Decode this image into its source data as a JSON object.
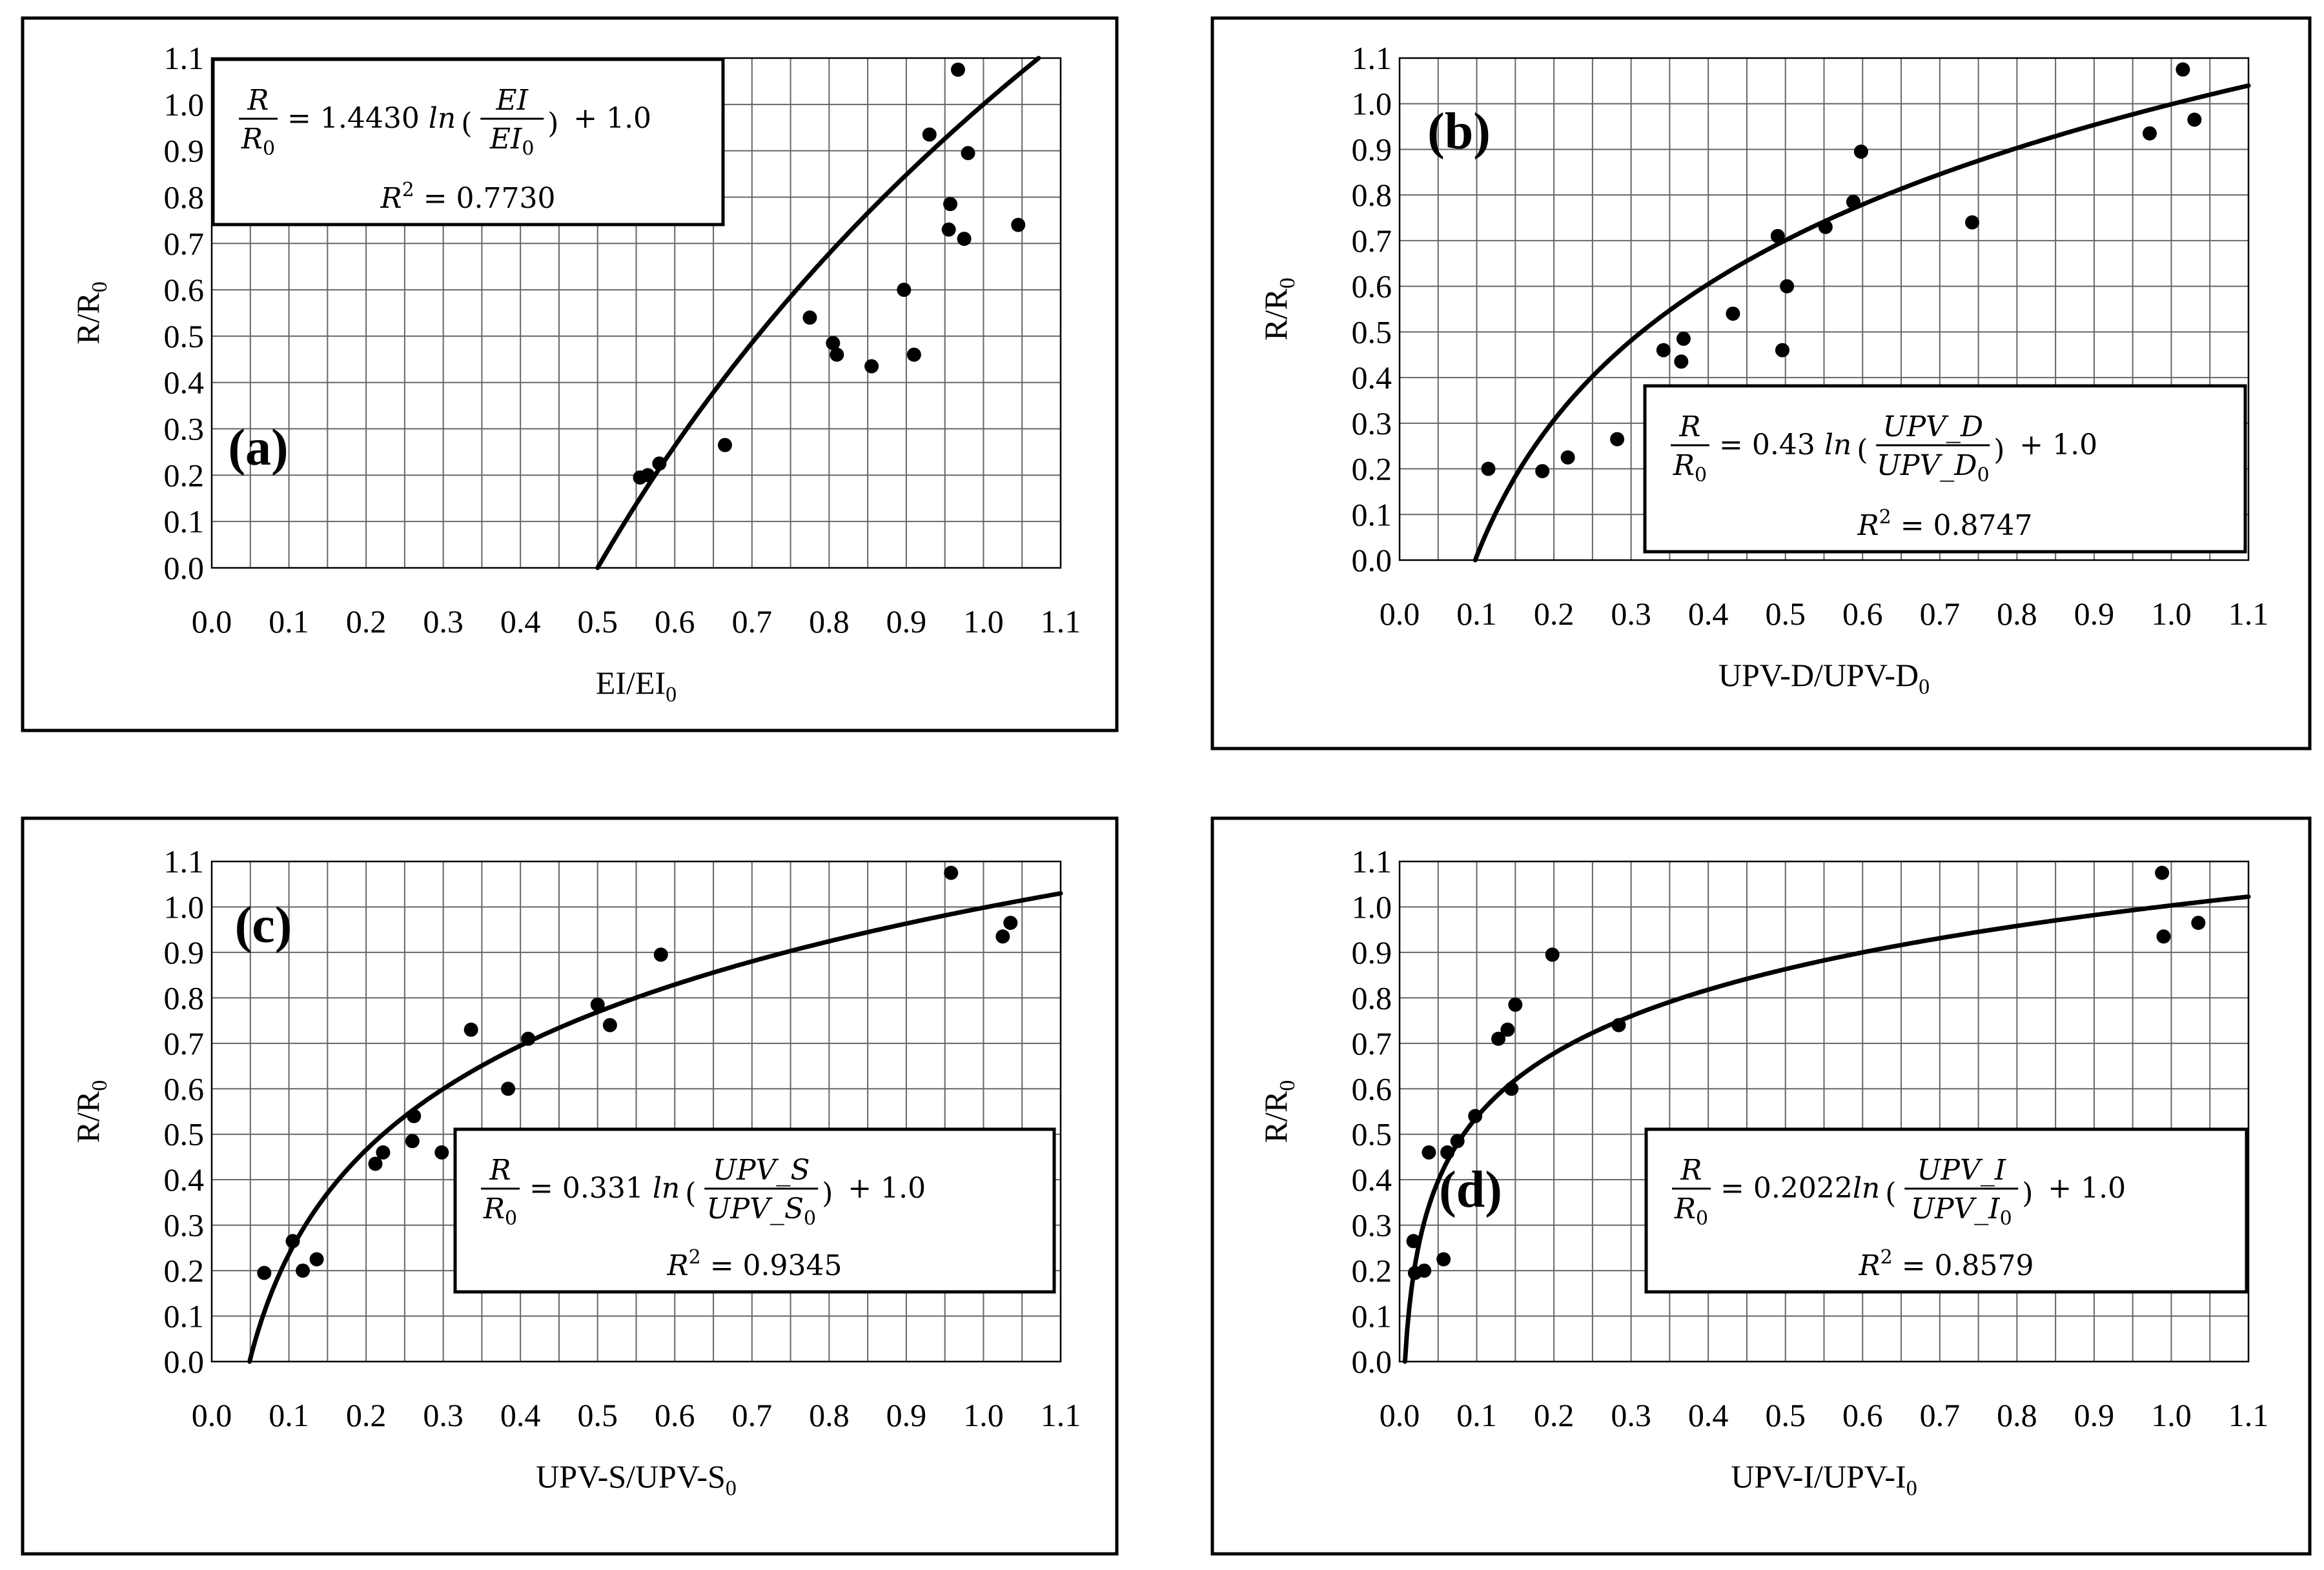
{
  "chart_data": [
    {
      "id": "a",
      "type": "scatter",
      "panel_label": "(a)",
      "xlabel": "EI/EI",
      "xlabel_sub": "0",
      "ylabel": "R/R",
      "ylabel_sub": "0",
      "xlim": [
        0.0,
        1.1
      ],
      "ylim": [
        0.0,
        1.1
      ],
      "x_ticks": [
        "0.0",
        "0.1",
        "0.2",
        "0.3",
        "0.4",
        "0.5",
        "0.6",
        "0.7",
        "0.8",
        "0.9",
        "1.0",
        "1.1"
      ],
      "y_ticks": [
        "0.0",
        "0.1",
        "0.2",
        "0.3",
        "0.4",
        "0.5",
        "0.6",
        "0.7",
        "0.8",
        "0.9",
        "1.0",
        "1.1"
      ],
      "grid": true,
      "fit": {
        "coef": 1.443,
        "x0": 0.5
      },
      "equation": {
        "num": "R",
        "den": "R",
        "den_sub": "0",
        "rhs_prefix": "= 1.4430 ",
        "ln": "ln",
        "arg_num": "EI",
        "arg_den": "EI",
        "arg_den_sub": "0",
        "rhs_suffix": "+ 1.0",
        "r2_label": "R",
        "r2_sup": "2",
        "r2_value": "= 0.7730"
      },
      "points": [
        {
          "x": 0.555,
          "y": 0.195
        },
        {
          "x": 0.565,
          "y": 0.2
        },
        {
          "x": 0.58,
          "y": 0.225
        },
        {
          "x": 0.665,
          "y": 0.265
        },
        {
          "x": 0.775,
          "y": 0.54
        },
        {
          "x": 0.805,
          "y": 0.485
        },
        {
          "x": 0.81,
          "y": 0.46
        },
        {
          "x": 0.855,
          "y": 0.435
        },
        {
          "x": 0.897,
          "y": 0.6
        },
        {
          "x": 0.91,
          "y": 0.46
        },
        {
          "x": 0.93,
          "y": 0.935
        },
        {
          "x": 0.955,
          "y": 0.73
        },
        {
          "x": 0.957,
          "y": 0.785
        },
        {
          "x": 0.967,
          "y": 1.075
        },
        {
          "x": 0.975,
          "y": 0.71
        },
        {
          "x": 0.98,
          "y": 0.895
        },
        {
          "x": 1.045,
          "y": 0.74
        }
      ]
    },
    {
      "id": "b",
      "type": "scatter",
      "panel_label": "(b)",
      "xlabel": "UPV-D/UPV-D",
      "xlabel_sub": "0",
      "ylabel": "R/R",
      "ylabel_sub": "0",
      "xlim": [
        0.0,
        1.1
      ],
      "ylim": [
        0.0,
        1.1
      ],
      "x_ticks": [
        "0.0",
        "0.1",
        "0.2",
        "0.3",
        "0.4",
        "0.5",
        "0.6",
        "0.7",
        "0.8",
        "0.9",
        "1.0",
        "1.1"
      ],
      "y_ticks": [
        "0.0",
        "0.1",
        "0.2",
        "0.3",
        "0.4",
        "0.5",
        "0.6",
        "0.7",
        "0.8",
        "0.9",
        "1.0",
        "1.1"
      ],
      "grid": true,
      "fit": {
        "coef": 0.43,
        "x0": 0.098
      },
      "equation": {
        "num": "R",
        "den": "R",
        "den_sub": "0",
        "rhs_prefix": "= 0.43 ",
        "ln": "ln",
        "arg_num": "UPV_D",
        "arg_den": "UPV_D",
        "arg_den_sub": "0",
        "rhs_suffix": "+ 1.0",
        "r2_label": "R",
        "r2_sup": "2",
        "r2_value": "= 0.8747"
      },
      "points": [
        {
          "x": 0.115,
          "y": 0.2
        },
        {
          "x": 0.185,
          "y": 0.195
        },
        {
          "x": 0.218,
          "y": 0.225
        },
        {
          "x": 0.282,
          "y": 0.265
        },
        {
          "x": 0.342,
          "y": 0.46
        },
        {
          "x": 0.365,
          "y": 0.435
        },
        {
          "x": 0.368,
          "y": 0.485
        },
        {
          "x": 0.432,
          "y": 0.54
        },
        {
          "x": 0.49,
          "y": 0.71
        },
        {
          "x": 0.496,
          "y": 0.46
        },
        {
          "x": 0.502,
          "y": 0.6
        },
        {
          "x": 0.552,
          "y": 0.73
        },
        {
          "x": 0.588,
          "y": 0.785
        },
        {
          "x": 0.598,
          "y": 0.895
        },
        {
          "x": 0.742,
          "y": 0.74
        },
        {
          "x": 0.972,
          "y": 0.935
        },
        {
          "x": 1.015,
          "y": 1.075
        },
        {
          "x": 1.03,
          "y": 0.965
        }
      ]
    },
    {
      "id": "c",
      "type": "scatter",
      "panel_label": "(c)",
      "xlabel": "UPV-S/UPV-S",
      "xlabel_sub": "0",
      "ylabel": "R/R",
      "ylabel_sub": "0",
      "xlim": [
        0.0,
        1.1
      ],
      "ylim": [
        0.0,
        1.1
      ],
      "x_ticks": [
        "0.0",
        "0.1",
        "0.2",
        "0.3",
        "0.4",
        "0.5",
        "0.6",
        "0.7",
        "0.8",
        "0.9",
        "1.0",
        "1.1"
      ],
      "y_ticks": [
        "0.0",
        "0.1",
        "0.2",
        "0.3",
        "0.4",
        "0.5",
        "0.6",
        "0.7",
        "0.8",
        "0.9",
        "1.0",
        "1.1"
      ],
      "grid": true,
      "fit": {
        "coef": 0.331,
        "x0": 0.049
      },
      "equation": {
        "num": "R",
        "den": "R",
        "den_sub": "0",
        "rhs_prefix": "= 0.331 ",
        "ln": "ln",
        "arg_num": "UPV_S",
        "arg_den": "UPV_S",
        "arg_den_sub": "0",
        "rhs_suffix": "+ 1.0",
        "r2_label": "R",
        "r2_sup": "2",
        "r2_value": "= 0.9345"
      },
      "points": [
        {
          "x": 0.068,
          "y": 0.195
        },
        {
          "x": 0.105,
          "y": 0.265
        },
        {
          "x": 0.118,
          "y": 0.2
        },
        {
          "x": 0.136,
          "y": 0.225
        },
        {
          "x": 0.212,
          "y": 0.435
        },
        {
          "x": 0.222,
          "y": 0.46
        },
        {
          "x": 0.26,
          "y": 0.485
        },
        {
          "x": 0.262,
          "y": 0.54
        },
        {
          "x": 0.298,
          "y": 0.46
        },
        {
          "x": 0.336,
          "y": 0.73
        },
        {
          "x": 0.384,
          "y": 0.6
        },
        {
          "x": 0.41,
          "y": 0.71
        },
        {
          "x": 0.5,
          "y": 0.785
        },
        {
          "x": 0.516,
          "y": 0.74
        },
        {
          "x": 0.582,
          "y": 0.895
        },
        {
          "x": 0.958,
          "y": 1.075
        },
        {
          "x": 1.025,
          "y": 0.935
        },
        {
          "x": 1.035,
          "y": 0.965
        }
      ]
    },
    {
      "id": "d",
      "type": "scatter",
      "panel_label": "(d)",
      "xlabel": "UPV-I/UPV-I",
      "xlabel_sub": "0",
      "ylabel": "R/R",
      "ylabel_sub": "0",
      "xlim": [
        0.0,
        1.1
      ],
      "ylim": [
        0.0,
        1.1
      ],
      "x_ticks": [
        "0.0",
        "0.1",
        "0.2",
        "0.3",
        "0.4",
        "0.5",
        "0.6",
        "0.7",
        "0.8",
        "0.9",
        "1.0",
        "1.1"
      ],
      "y_ticks": [
        "0.0",
        "0.1",
        "0.2",
        "0.3",
        "0.4",
        "0.5",
        "0.6",
        "0.7",
        "0.8",
        "0.9",
        "1.0",
        "1.1"
      ],
      "grid": true,
      "fit": {
        "coef": 0.2022,
        "x0": 0.007
      },
      "equation": {
        "num": "R",
        "den": "R",
        "den_sub": "0",
        "rhs_prefix": "= 0.2022",
        "ln": "ln",
        "arg_num": "UPV_I",
        "arg_den": "UPV_I",
        "arg_den_sub": "0",
        "rhs_suffix": "+ 1.0",
        "r2_label": "R",
        "r2_sup": "2",
        "r2_value": "= 0.8579"
      },
      "points": [
        {
          "x": 0.018,
          "y": 0.265
        },
        {
          "x": 0.02,
          "y": 0.195
        },
        {
          "x": 0.032,
          "y": 0.2
        },
        {
          "x": 0.038,
          "y": 0.46
        },
        {
          "x": 0.057,
          "y": 0.225
        },
        {
          "x": 0.062,
          "y": 0.46
        },
        {
          "x": 0.075,
          "y": 0.485
        },
        {
          "x": 0.098,
          "y": 0.54
        },
        {
          "x": 0.128,
          "y": 0.71
        },
        {
          "x": 0.14,
          "y": 0.73
        },
        {
          "x": 0.145,
          "y": 0.6
        },
        {
          "x": 0.15,
          "y": 0.785
        },
        {
          "x": 0.198,
          "y": 0.895
        },
        {
          "x": 0.284,
          "y": 0.74
        },
        {
          "x": 0.988,
          "y": 1.075
        },
        {
          "x": 0.99,
          "y": 0.935
        },
        {
          "x": 1.035,
          "y": 0.965
        }
      ]
    }
  ]
}
